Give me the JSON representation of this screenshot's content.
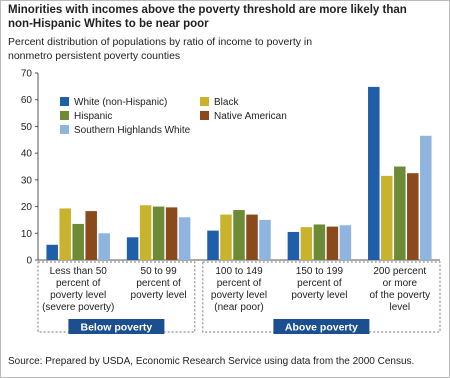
{
  "chart_data": {
    "type": "bar",
    "title": "Minorities with incomes above the poverty threshold are more likely than\nnon-Hispanic Whites to be near poor",
    "subtitle": "Percent distribution of populations by ratio of income to poverty in\nnonmetro persistent poverty counties",
    "categories": [
      "Less than 50\npercent of\npoverty level\n(severe poverty)",
      "50 to 99\npercent of\npoverty level",
      "100 to 149\npercent of\npoverty level\n(near poor)",
      "150 to 199\npercent of\npoverty level",
      "200 percent\nor more\nof the poverty\nlevel"
    ],
    "group_labels": [
      "Below poverty",
      "Above poverty"
    ],
    "series": [
      {
        "name": "White (non-Hispanic)",
        "color": "#1f5ea8",
        "values": [
          5.7,
          8.5,
          11,
          10.5,
          64.8
        ]
      },
      {
        "name": "Black",
        "color": "#c9b32c",
        "values": [
          19.3,
          20.5,
          17,
          12.3,
          31.5
        ]
      },
      {
        "name": "Hispanic",
        "color": "#6d8b36",
        "values": [
          13.5,
          20,
          18.7,
          13.3,
          35
        ]
      },
      {
        "name": "Native American",
        "color": "#8a4a1c",
        "values": [
          18.3,
          19.7,
          17,
          12.5,
          32.5
        ]
      },
      {
        "name": "Southern Highlands White",
        "color": "#8fb5de",
        "values": [
          10,
          16,
          15,
          13,
          46.5
        ]
      }
    ],
    "ylim": [
      0,
      70
    ],
    "yticks": [
      0,
      10,
      20,
      30,
      40,
      50,
      60,
      70
    ],
    "grid": false,
    "source": "Source: Prepared by USDA, Economic Research Service using data from the 2000 Census."
  }
}
